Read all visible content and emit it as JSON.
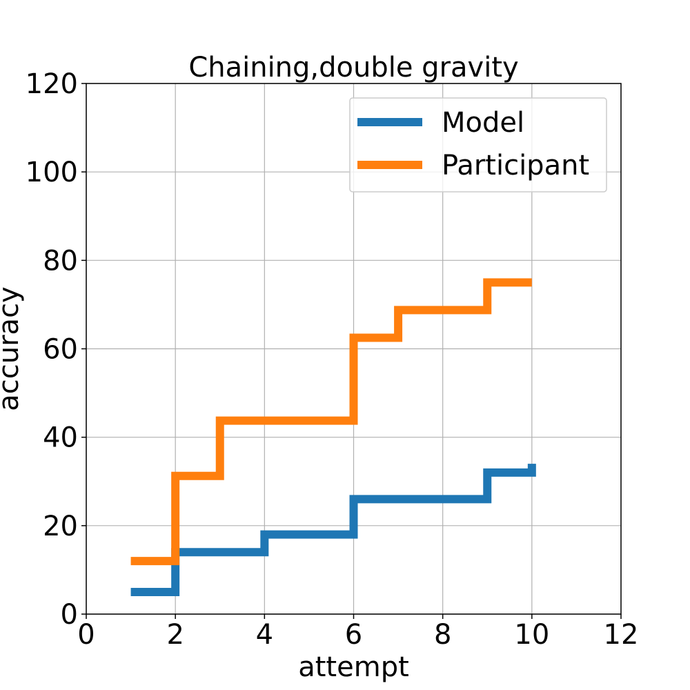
{
  "chart_data": {
    "type": "line",
    "step": "post",
    "title": "Chaining,double gravity",
    "xlabel": "attempt",
    "ylabel": "accuracy",
    "xlim": [
      0,
      12
    ],
    "ylim": [
      0,
      120
    ],
    "xticks": [
      0,
      2,
      4,
      6,
      8,
      10,
      12
    ],
    "yticks": [
      0,
      20,
      40,
      60,
      80,
      100,
      120
    ],
    "grid": true,
    "legend_position": "top-right",
    "series": [
      {
        "name": "Model",
        "color": "#1f77b4",
        "x": [
          1,
          2,
          3,
          4,
          5,
          6,
          7,
          8,
          9,
          10
        ],
        "y": [
          5,
          14,
          14,
          18,
          18,
          26,
          26,
          26,
          32,
          34
        ]
      },
      {
        "name": "Participant",
        "color": "#ff7f0e",
        "x": [
          1,
          2,
          3,
          4,
          5,
          6,
          7,
          8,
          9,
          10
        ],
        "y": [
          12,
          31.25,
          43.75,
          43.75,
          43.75,
          62.5,
          68.75,
          68.75,
          75,
          75
        ]
      }
    ]
  }
}
